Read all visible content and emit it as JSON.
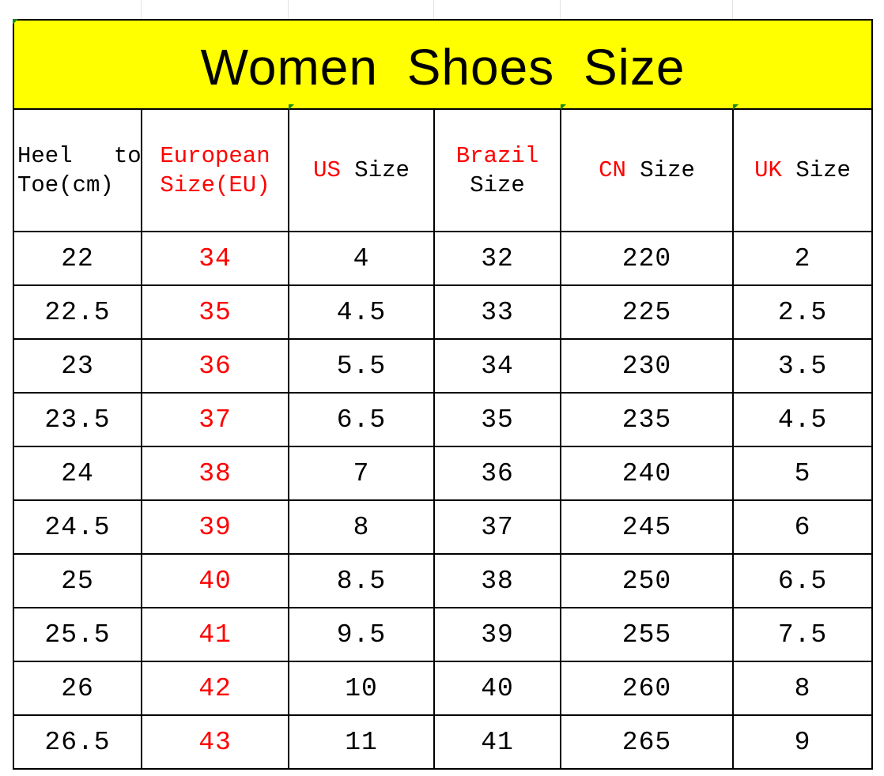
{
  "title": "Women Shoes Size",
  "headers": {
    "heel_to_toe": {
      "line1": "Heel   to",
      "line2": "Toe(cm)"
    },
    "european": {
      "line1": "European",
      "line2": "Size(EU)"
    },
    "us": {
      "red": "US",
      "black": "Size"
    },
    "brazil": {
      "red": "Brazil",
      "black": "Size"
    },
    "cn": {
      "red": "CN",
      "black": "Size"
    },
    "uk": {
      "red": "UK",
      "black": "Size"
    }
  },
  "rows": [
    [
      "22",
      "34",
      "4",
      "32",
      "220",
      "2"
    ],
    [
      "22.5",
      "35",
      "4.5",
      "33",
      "225",
      "2.5"
    ],
    [
      "23",
      "36",
      "5.5",
      "34",
      "230",
      "3.5"
    ],
    [
      "23.5",
      "37",
      "6.5",
      "35",
      "235",
      "4.5"
    ],
    [
      "24",
      "38",
      "7",
      "36",
      "240",
      "5"
    ],
    [
      "24.5",
      "39",
      "8",
      "37",
      "245",
      "6"
    ],
    [
      "25",
      "40",
      "8.5",
      "38",
      "250",
      "6.5"
    ],
    [
      "25.5",
      "41",
      "9.5",
      "39",
      "255",
      "7.5"
    ],
    [
      "26",
      "42",
      "10",
      "40",
      "260",
      "8"
    ],
    [
      "26.5",
      "43",
      "11",
      "41",
      "265",
      "9"
    ]
  ],
  "colors": {
    "title_bg": "#ffff00",
    "accent_red": "#ff0000"
  }
}
